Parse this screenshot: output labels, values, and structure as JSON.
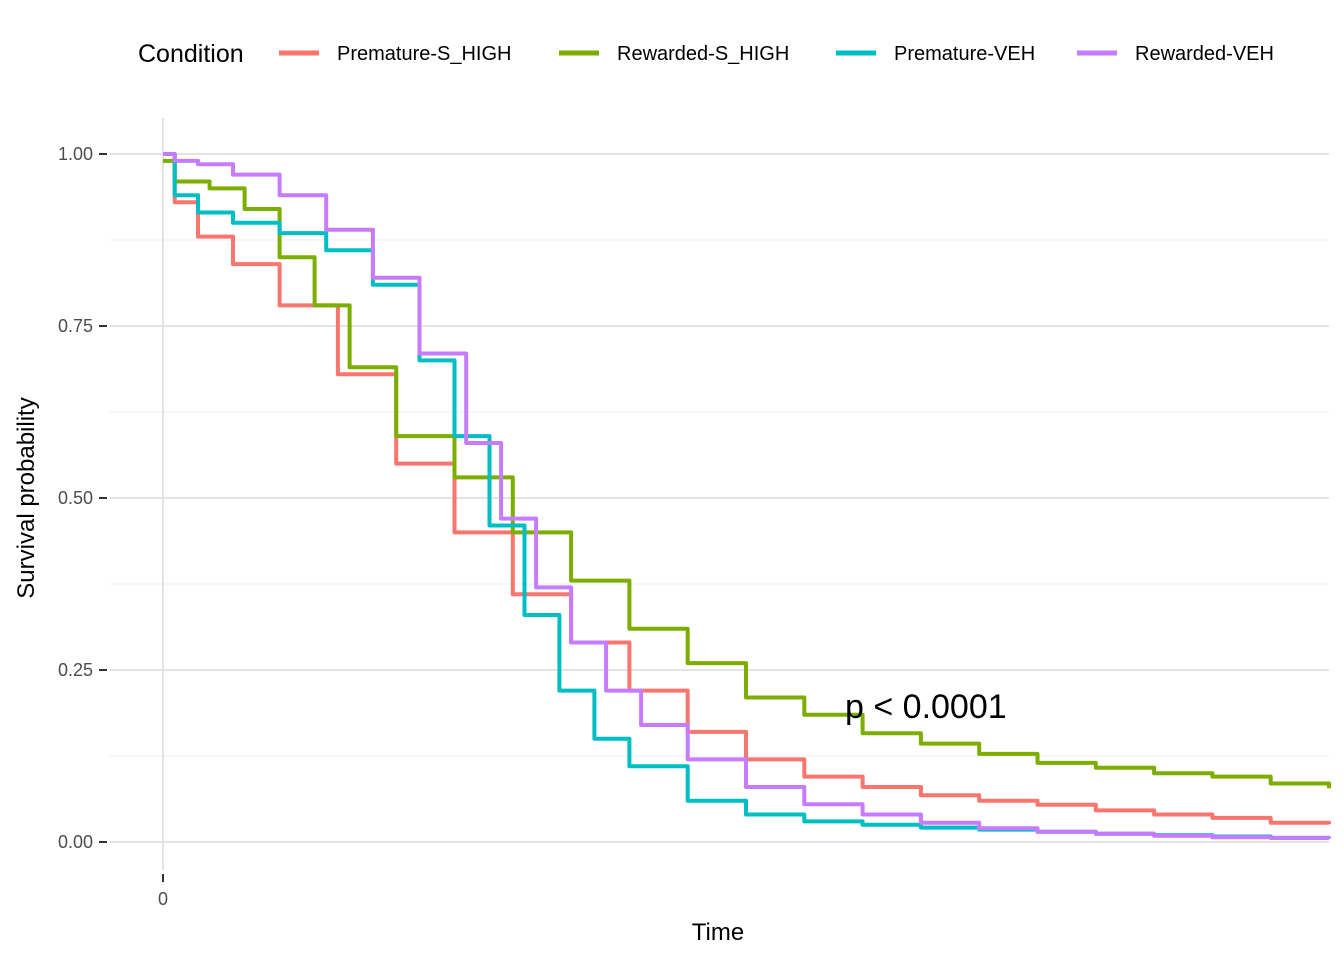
{
  "chart_data": {
    "type": "line",
    "title": "",
    "xlabel": "Time",
    "ylabel": "Survival probability",
    "ylim": [
      0,
      1.05
    ],
    "x_tick_labels": [
      "0"
    ],
    "y_tick_labels": [
      "0.00",
      "0.25",
      "0.50",
      "0.75",
      "1.00"
    ],
    "y_ticks": [
      0,
      0.25,
      0.5,
      0.75,
      1.0
    ],
    "grid": true,
    "legend": {
      "title": "Condition",
      "position": "top"
    },
    "annotation": "p < 0.0001",
    "series": [
      {
        "name": "Premature-S_HIGH",
        "color": "#F8766D",
        "x": [
          0,
          0.01,
          0.03,
          0.06,
          0.1,
          0.15,
          0.2,
          0.25,
          0.3,
          0.35,
          0.4,
          0.45,
          0.5,
          0.55,
          0.6,
          0.65,
          0.7,
          0.75,
          0.8,
          0.85,
          0.9,
          0.95,
          1.0
        ],
        "y": [
          1.0,
          0.93,
          0.88,
          0.84,
          0.78,
          0.68,
          0.55,
          0.45,
          0.36,
          0.29,
          0.22,
          0.16,
          0.12,
          0.095,
          0.08,
          0.068,
          0.06,
          0.054,
          0.046,
          0.04,
          0.035,
          0.028,
          0.026
        ]
      },
      {
        "name": "Rewarded-S_HIGH",
        "color": "#7CAE00",
        "x": [
          0,
          0.01,
          0.04,
          0.07,
          0.1,
          0.13,
          0.16,
          0.2,
          0.25,
          0.3,
          0.35,
          0.4,
          0.45,
          0.5,
          0.55,
          0.6,
          0.65,
          0.7,
          0.75,
          0.8,
          0.85,
          0.9,
          0.95,
          1.0
        ],
        "y": [
          0.99,
          0.96,
          0.95,
          0.92,
          0.85,
          0.78,
          0.69,
          0.59,
          0.53,
          0.45,
          0.38,
          0.31,
          0.26,
          0.21,
          0.185,
          0.158,
          0.143,
          0.128,
          0.115,
          0.108,
          0.1,
          0.095,
          0.085,
          0.078
        ]
      },
      {
        "name": "Premature-VEH",
        "color": "#00BFC4",
        "x": [
          0,
          0.01,
          0.03,
          0.06,
          0.1,
          0.14,
          0.18,
          0.22,
          0.25,
          0.28,
          0.31,
          0.34,
          0.37,
          0.4,
          0.45,
          0.5,
          0.55,
          0.6,
          0.65,
          0.7,
          0.75,
          0.8,
          0.85,
          0.9,
          0.95,
          1.0
        ],
        "y": [
          1.0,
          0.94,
          0.915,
          0.9,
          0.885,
          0.86,
          0.81,
          0.7,
          0.59,
          0.46,
          0.33,
          0.22,
          0.15,
          0.11,
          0.06,
          0.04,
          0.03,
          0.025,
          0.021,
          0.018,
          0.015,
          0.012,
          0.01,
          0.008,
          0.006,
          0.005
        ]
      },
      {
        "name": "Rewarded-VEH",
        "color": "#C77CFF",
        "x": [
          0,
          0.01,
          0.03,
          0.06,
          0.1,
          0.14,
          0.18,
          0.22,
          0.26,
          0.29,
          0.32,
          0.35,
          0.38,
          0.41,
          0.45,
          0.5,
          0.55,
          0.6,
          0.65,
          0.7,
          0.75,
          0.8,
          0.85,
          0.9,
          0.95,
          1.0
        ],
        "y": [
          1.0,
          0.99,
          0.985,
          0.97,
          0.94,
          0.89,
          0.82,
          0.71,
          0.58,
          0.47,
          0.37,
          0.29,
          0.22,
          0.17,
          0.12,
          0.08,
          0.055,
          0.04,
          0.028,
          0.02,
          0.015,
          0.012,
          0.009,
          0.007,
          0.006,
          0.005
        ]
      }
    ]
  }
}
